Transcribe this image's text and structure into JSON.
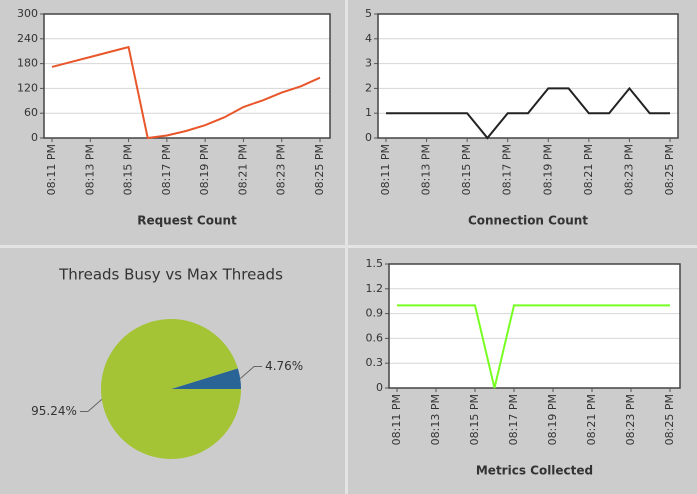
{
  "chart_data": [
    {
      "type": "line",
      "xlabel": "Request Count",
      "categories": [
        "08:11 PM",
        null,
        "08:13 PM",
        null,
        "08:15 PM",
        null,
        "08:17 PM",
        null,
        "08:19 PM",
        null,
        "08:21 PM",
        null,
        "08:23 PM",
        null,
        "08:25 PM"
      ],
      "values": [
        172,
        184,
        196,
        208,
        220,
        0,
        6,
        17,
        31,
        50,
        75,
        91,
        110,
        125,
        146
      ],
      "color": "#e8562a",
      "ylim": [
        0,
        300
      ],
      "yticks": [
        0,
        60,
        120,
        180,
        240,
        300
      ],
      "grid": true
    },
    {
      "type": "line",
      "xlabel": "Connection Count",
      "categories": [
        "08:11 PM",
        null,
        "08:13 PM",
        null,
        "08:15 PM",
        null,
        "08:17 PM",
        null,
        "08:19 PM",
        null,
        "08:21 PM",
        null,
        "08:23 PM",
        null,
        "08:25 PM"
      ],
      "values": [
        1,
        1,
        1,
        1,
        1,
        0,
        1,
        1,
        2,
        2,
        1,
        1,
        2,
        1,
        1
      ],
      "color": "#222222",
      "ylim": [
        0,
        5
      ],
      "yticks": [
        0,
        1,
        2,
        3,
        4,
        5
      ],
      "grid": true
    },
    {
      "type": "pie",
      "title": "Threads Busy vs Max Threads",
      "values": [
        4.76,
        95.24
      ],
      "value_labels": [
        "4.76%",
        "95.24%"
      ],
      "colors": [
        "#2a6496",
        "#a4c436"
      ]
    },
    {
      "type": "line",
      "xlabel": "Metrics Collected",
      "categories": [
        "08:11 PM",
        null,
        "08:13 PM",
        null,
        "08:15 PM",
        null,
        "08:17 PM",
        null,
        "08:19 PM",
        null,
        "08:21 PM",
        null,
        "08:23 PM",
        null,
        "08:25 PM"
      ],
      "values": [
        1,
        1,
        1,
        1,
        1,
        0,
        1,
        1,
        1,
        1,
        1,
        1,
        1,
        1,
        1
      ],
      "color": "#77ff22",
      "ylim": [
        0,
        1.5
      ],
      "yticks": [
        0,
        0.3,
        0.6,
        0.9,
        1.2,
        1.5
      ],
      "grid": true
    }
  ]
}
